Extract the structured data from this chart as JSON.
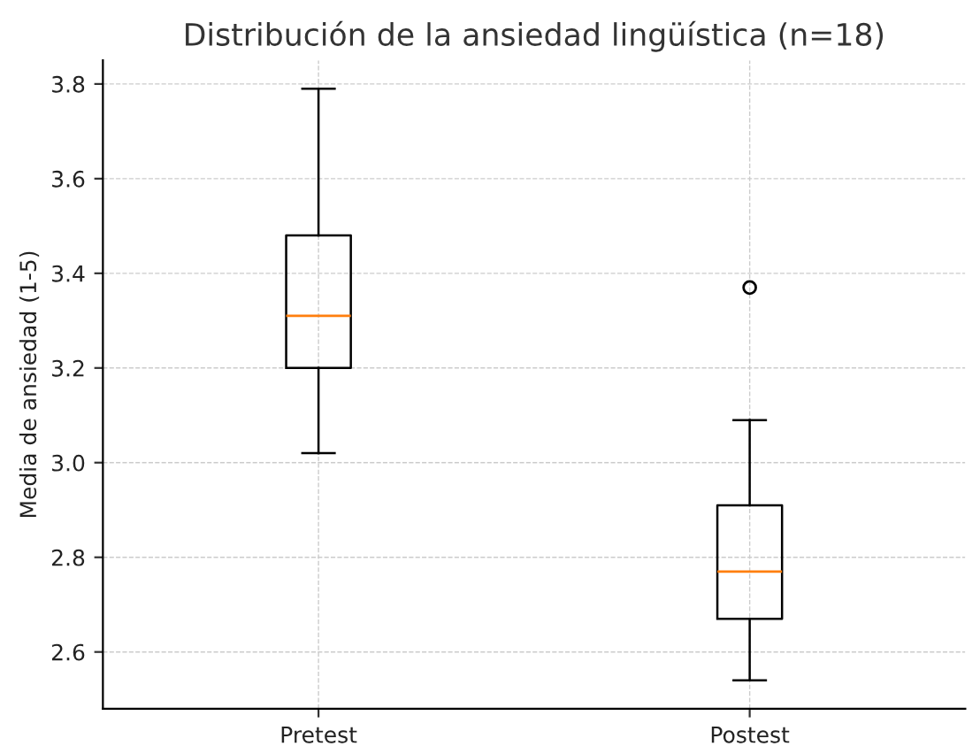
{
  "chart_data": {
    "type": "box",
    "title": "Distribución de la ansiedad lingüística (n=18)",
    "ylabel": "Media de ansiedad (1-5)",
    "categories": [
      "Pretest",
      "Postest"
    ],
    "boxes": [
      {
        "low": 3.02,
        "q1": 3.2,
        "median": 3.31,
        "q3": 3.48,
        "high": 3.79
      },
      {
        "low": 2.54,
        "q1": 2.67,
        "median": 2.77,
        "q3": 2.91,
        "high": 3.09,
        "outliers": [
          3.37
        ]
      }
    ],
    "color": "#000000",
    "ylim": [
      2.48,
      3.85
    ],
    "yticks": [
      2.6,
      2.8,
      {
        "value": 3.0,
        "label": "3.0"
      },
      3.2,
      3.4,
      3.6,
      3.8
    ],
    "grid": true
  }
}
